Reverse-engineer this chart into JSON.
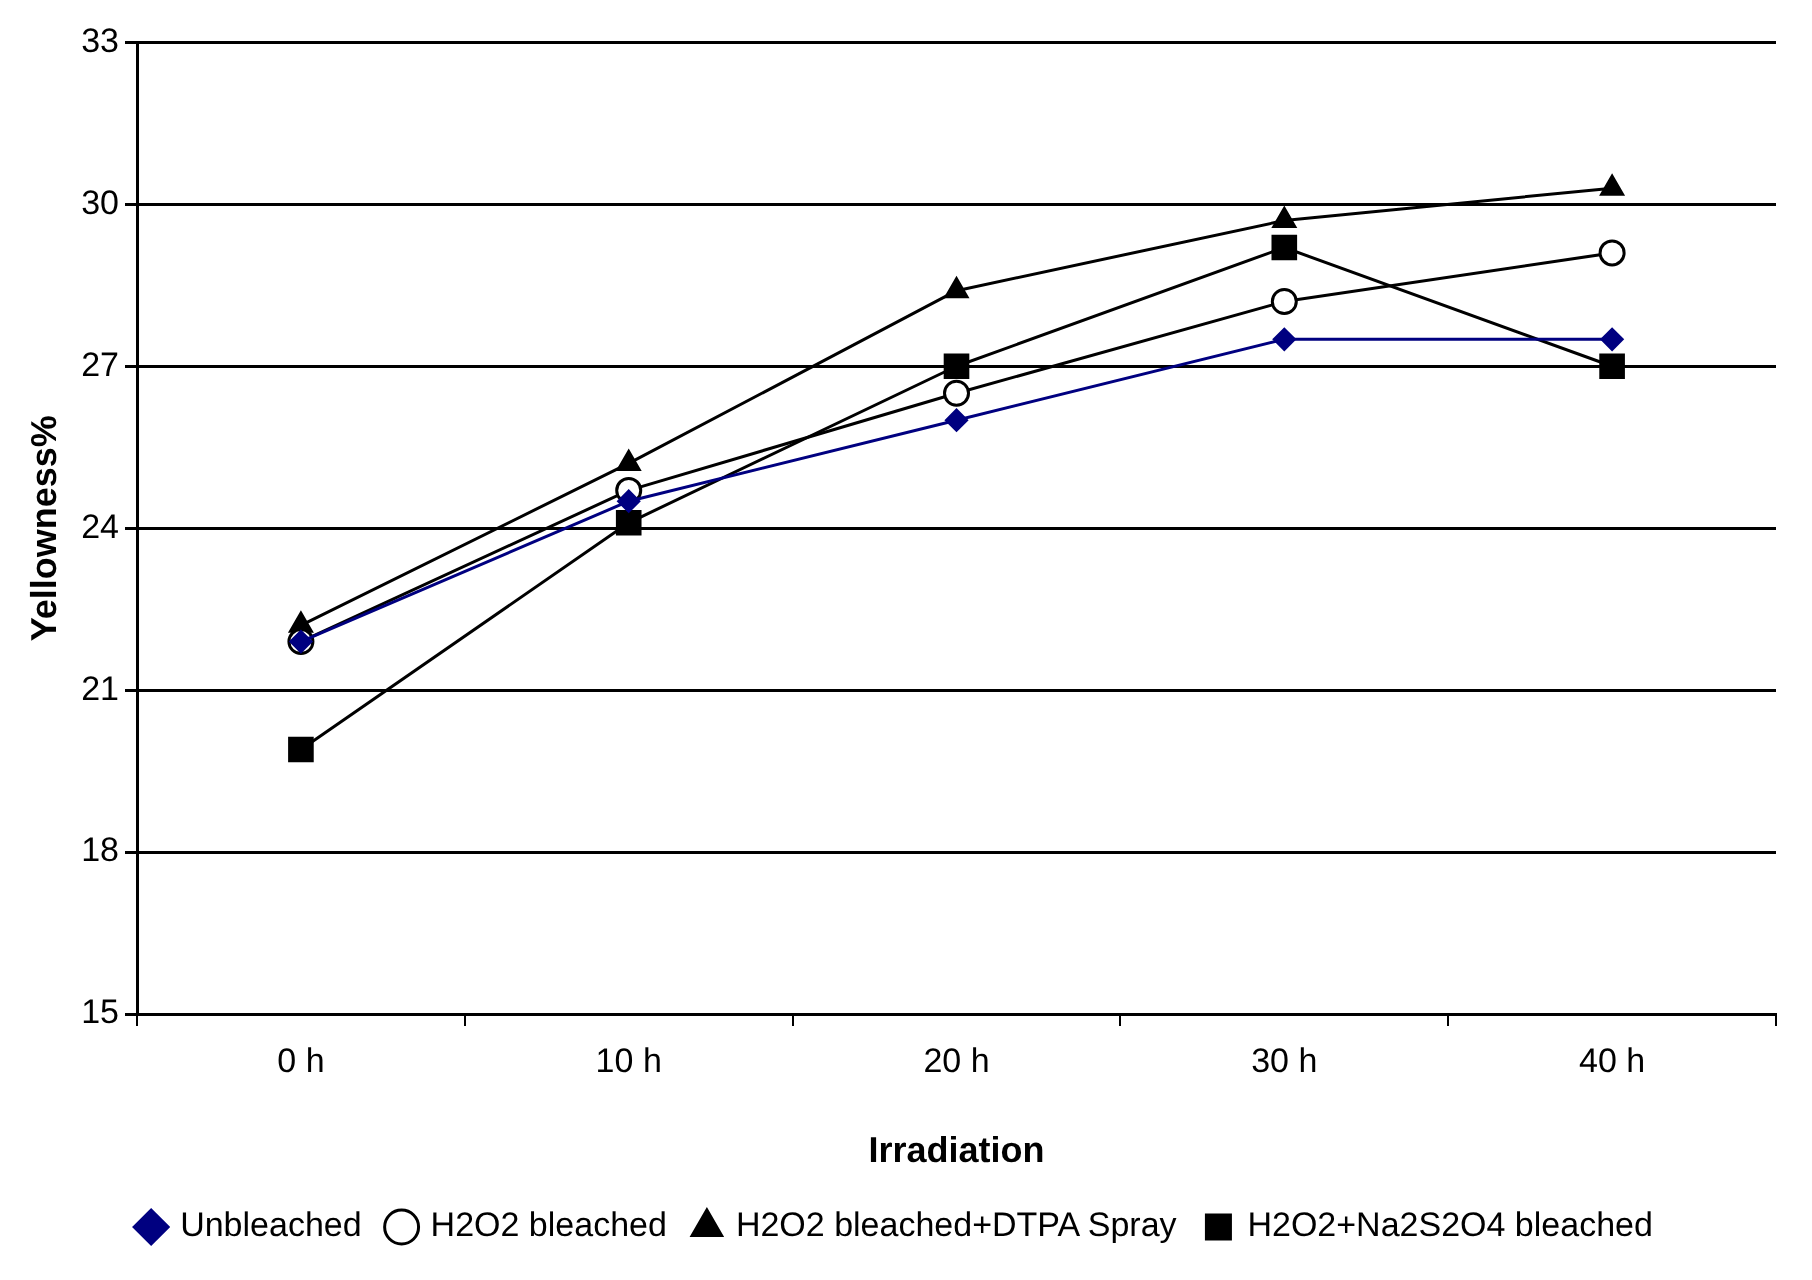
{
  "chart_data": {
    "type": "line",
    "xlabel": "Irradiation",
    "ylabel": "Yellowness%",
    "categories": [
      "0 h",
      "10 h",
      "20 h",
      "30 h",
      "40 h"
    ],
    "series": [
      {
        "name": "Unbleached",
        "color": "#000080",
        "marker": "diamond",
        "values": [
          21.9,
          24.5,
          26.0,
          27.5,
          27.5
        ]
      },
      {
        "name": "H2O2 bleached",
        "color": "#000000",
        "marker": "circle",
        "values": [
          21.9,
          24.7,
          26.5,
          28.2,
          29.1
        ]
      },
      {
        "name": "H2O2 bleached+DTPA Spray",
        "color": "#000000",
        "marker": "triangle",
        "values": [
          22.2,
          25.2,
          28.4,
          29.7,
          30.3
        ]
      },
      {
        "name": "H2O2+Na2S2O4 bleached",
        "color": "#000000",
        "marker": "square",
        "values": [
          19.9,
          24.1,
          27.0,
          29.2,
          27.0
        ]
      }
    ],
    "ylim": [
      15,
      33
    ],
    "yticks": [
      15,
      18,
      21,
      24,
      27,
      30,
      33
    ],
    "grid": "y",
    "legend": "bottom"
  }
}
